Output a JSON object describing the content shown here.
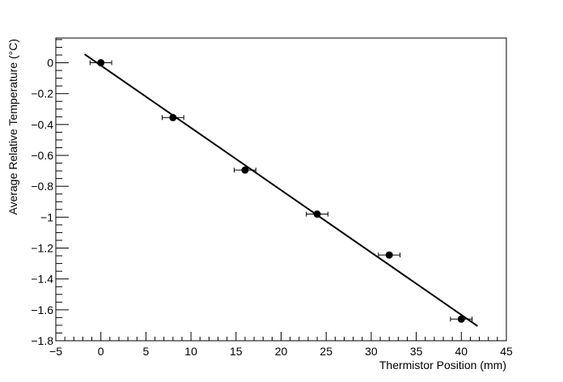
{
  "chart_data": {
    "type": "scatter",
    "title": "",
    "xlabel": "Thermistor Position (mm)",
    "ylabel": "Average Relative Temperature (°C)",
    "xlim": [
      -5,
      45
    ],
    "ylim": [
      -1.8,
      0.16
    ],
    "x_ticks": [
      -5,
      0,
      5,
      10,
      15,
      20,
      25,
      30,
      35,
      40,
      45
    ],
    "x_tick_labels": [
      "−5",
      "0",
      "5",
      "10",
      "15",
      "20",
      "25",
      "30",
      "35",
      "40",
      "45"
    ],
    "y_ticks": [
      0,
      -0.2,
      -0.4,
      -0.6,
      -0.8,
      -1,
      -1.2,
      -1.4,
      -1.6,
      -1.8
    ],
    "y_tick_labels": [
      "0",
      "−0.2",
      "−0.4",
      "−0.6",
      "−0.8",
      "−1",
      "−1.2",
      "−1.4",
      "−1.6",
      "−1.8"
    ],
    "grid": false,
    "series": [
      {
        "kind": "points-with-x-error",
        "x": [
          0,
          8,
          16,
          24,
          32,
          40
        ],
        "y": [
          0.0,
          -0.355,
          -0.695,
          -0.98,
          -1.245,
          -1.66
        ],
        "x_err": [
          1.2,
          1.2,
          1.2,
          1.2,
          1.2,
          1.2
        ],
        "color": "#000000"
      },
      {
        "kind": "fit-line",
        "x": [
          -1.8,
          41.8
        ],
        "y": [
          0.055,
          -1.705
        ],
        "color": "#000000"
      }
    ]
  }
}
